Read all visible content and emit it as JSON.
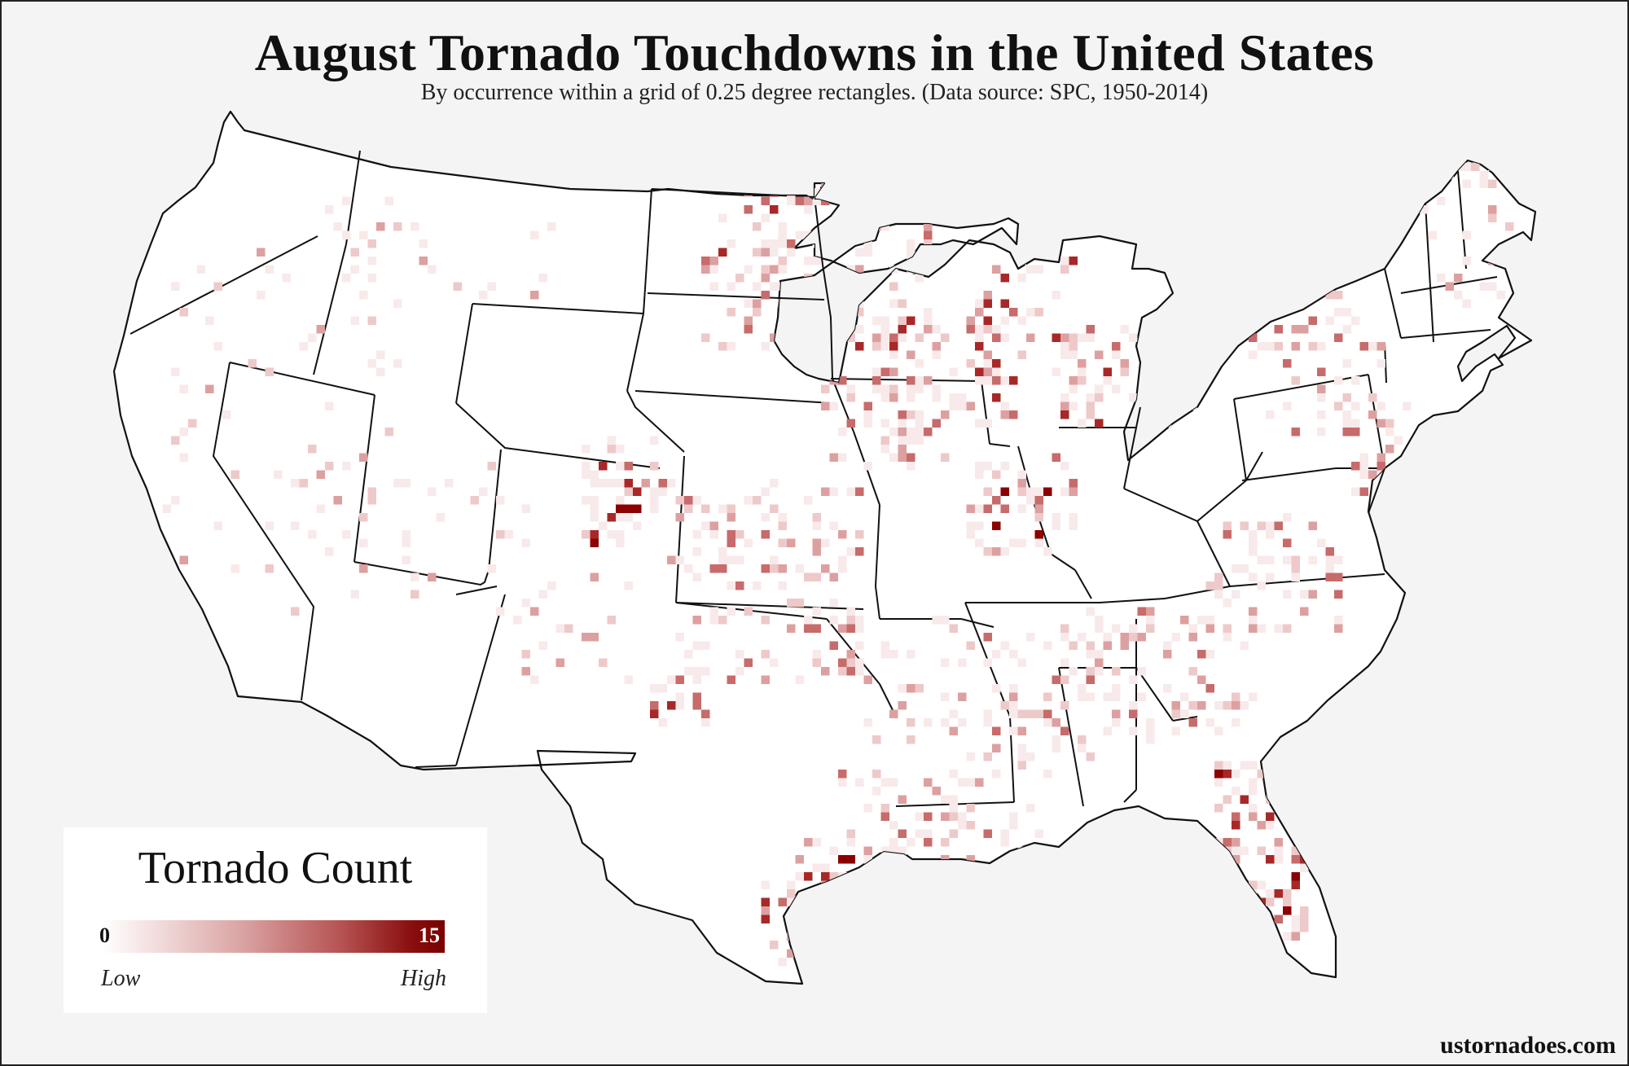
{
  "title": "August Tornado Touchdowns in the United States",
  "subtitle": "By occurrence within a grid of 0.25 degree rectangles. (Data source: SPC, 1950-2014)",
  "legend": {
    "title": "Tornado Count",
    "min_label": "0",
    "max_label": "15",
    "low_label": "Low",
    "high_label": "High",
    "color_low": "#ffffff",
    "color_high": "#7a0000"
  },
  "credit": "ustornadoes.com",
  "colors": {
    "background": "#f4f4f4",
    "land": "#ffffff",
    "border": "#111111",
    "scale": [
      "#f8eaea",
      "#eec9c9",
      "#dda0a0",
      "#c76b6b",
      "#a82828",
      "#8b0000"
    ]
  },
  "chart_data": {
    "type": "heatmap",
    "value_range": [
      0,
      15
    ],
    "grid_resolution_degrees": 0.25,
    "hotspots": [
      {
        "region": "Colorado Front Range",
        "level": "high"
      },
      {
        "region": "Upper Texas Gulf Coast (Houston)",
        "level": "high"
      },
      {
        "region": "South Texas Coast",
        "level": "medium-high"
      },
      {
        "region": "South Florida",
        "level": "medium-high"
      },
      {
        "region": "Central Illinois",
        "level": "medium-high"
      },
      {
        "region": "Southern Wisconsin",
        "level": "medium"
      },
      {
        "region": "North Dakota",
        "level": "medium"
      },
      {
        "region": "Western Oklahoma / Texas Panhandle",
        "level": "medium"
      }
    ]
  }
}
